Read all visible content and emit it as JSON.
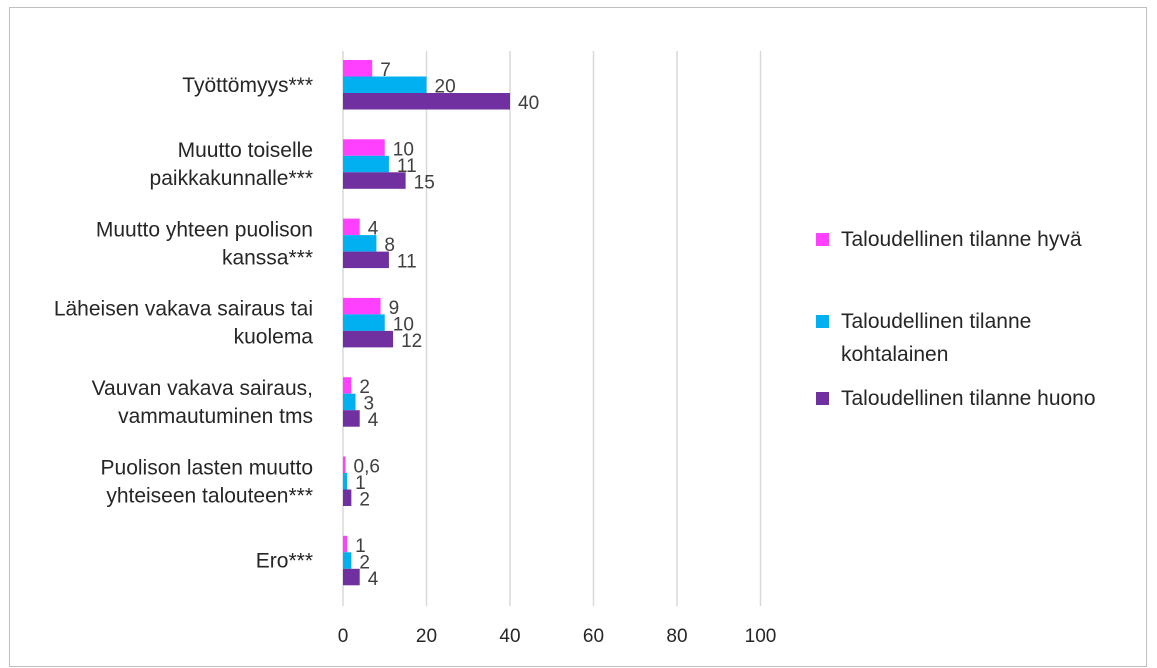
{
  "chart_data": {
    "type": "bar",
    "orientation": "horizontal",
    "title": "",
    "xlabel": "",
    "ylabel": "",
    "xlim": [
      0,
      100
    ],
    "x_ticks": [
      "0",
      "20",
      "40",
      "60",
      "80",
      "100"
    ],
    "grid": "vertical",
    "legend_position": "right",
    "categories": [
      [
        "Työttömyys***"
      ],
      [
        "Muutto toiselle",
        "paikkakunnalle***"
      ],
      [
        "Muutto yhteen puolison",
        "kanssa***"
      ],
      [
        "Läheisen vakava sairaus tai",
        "kuolema"
      ],
      [
        "Vauvan vakava sairaus,",
        "vammautuminen tms"
      ],
      [
        "Puolison lasten muutto",
        "yhteiseen talouteen***"
      ],
      [
        "Ero***"
      ]
    ],
    "series": [
      {
        "name": "Taloudellinen tilanne hyvä",
        "color": "#ff40ff",
        "values": [
          7,
          10,
          4,
          9,
          2,
          0.6,
          1
        ],
        "labels": [
          "7",
          "10",
          "4",
          "9",
          "2",
          "0,6",
          "1"
        ]
      },
      {
        "name": "Taloudellinen tilanne kohtalainen",
        "legend_lines": [
          "Taloudellinen tilanne",
          "kohtalainen"
        ],
        "color": "#00b0f0",
        "values": [
          20,
          11,
          8,
          10,
          3,
          1,
          2
        ],
        "labels": [
          "20",
          "11",
          "8",
          "10",
          "3",
          "1",
          "2"
        ]
      },
      {
        "name": "Taloudellinen tilanne huono",
        "color": "#7030a0",
        "values": [
          40,
          15,
          11,
          12,
          4,
          2,
          4
        ],
        "labels": [
          "40",
          "15",
          "11",
          "12",
          "4",
          "2",
          "4"
        ]
      }
    ]
  }
}
